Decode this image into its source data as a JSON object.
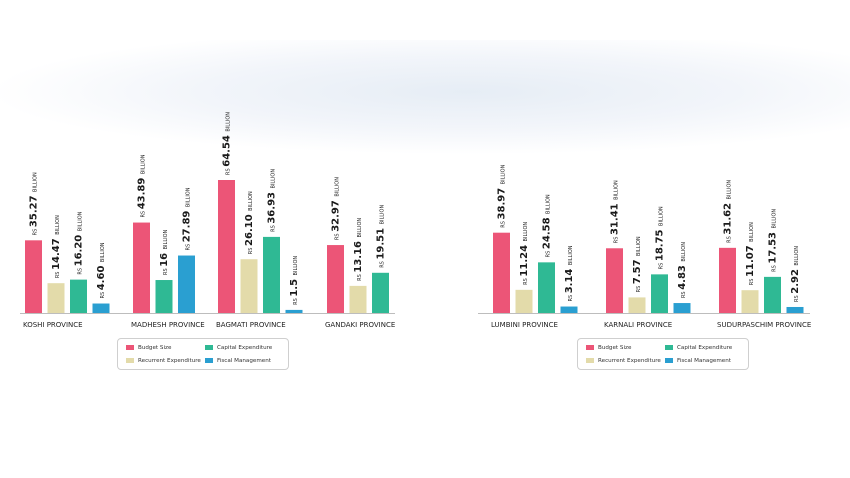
{
  "chart_data": {
    "type": "bar",
    "unit_prefix": "Rs",
    "unit_suffix": "Billion",
    "series": [
      {
        "name": "Budget Size",
        "color": "#ec5577"
      },
      {
        "name": "Recurrent Expenditure",
        "color": "#e3dbaa"
      },
      {
        "name": "Capital Expenditure",
        "color": "#2fb994"
      },
      {
        "name": "Fiscal Management",
        "color": "#2a9fd1"
      }
    ],
    "groups": [
      {
        "categories": [
          "KOSHI PROVINCE",
          "MADHESH PROVINCE",
          "BAGMATI PROVINCE",
          "GANDAKI PROVINCE"
        ],
        "values": [
          [
            "35.27",
            "14.47",
            "16.20",
            "4.60"
          ],
          [
            "43.89",
            "16",
            "27.89"
          ],
          [
            "64.54",
            "26.10",
            "36.93",
            "1.5"
          ],
          [
            "32.97",
            "13.16",
            "19.51"
          ]
        ]
      },
      {
        "categories": [
          "LUMBINI PROVINCE",
          "KARNALI PROVINCE",
          "SUDURPASCHIM PROVINCE"
        ],
        "values": [
          [
            "38.97",
            "11.24",
            "24.58",
            "3.14"
          ],
          [
            "31.41",
            "7.57",
            "18.75",
            "4.83"
          ],
          [
            "31.62",
            "11.07",
            "17.53",
            "2.92"
          ]
        ]
      }
    ],
    "madhesh_series_order": [
      0,
      2,
      3
    ]
  }
}
